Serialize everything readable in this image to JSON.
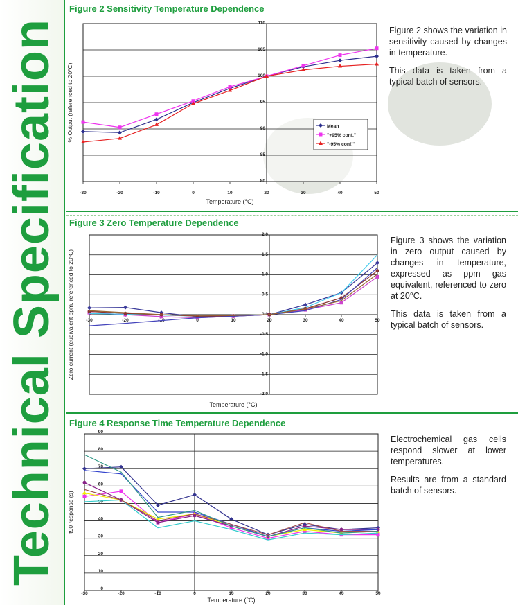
{
  "sidebar": {
    "title": "Technical Specification"
  },
  "sections": [
    {
      "title": "Figure 2 Sensitivity Temperature Dependence",
      "desc": [
        "Figure 2 shows the variation in sensitivity caused by changes in temperature.",
        "This data is taken from a typical batch of sensors."
      ]
    },
    {
      "title": "Figure 3 Zero Temperature Dependence",
      "desc": [
        "Figure 3 shows the variation in zero output caused by changes in temperature, expressed as ppm gas equivalent, referenced to zero at 20°C.",
        "This data is taken from a typical batch of sensors."
      ]
    },
    {
      "title": "Figure 4  Response Time Temperature Dependence",
      "desc": [
        "Electrochemical gas cells respond slower at lower temperatures.",
        "Results are from a standard batch of sensors."
      ]
    }
  ],
  "colors": {
    "brand": "#1e9e3e"
  },
  "chart_data": [
    {
      "type": "line",
      "title": "Figure 2 Sensitivity Temperature Dependence",
      "xlabel": "Temperature (°C)",
      "ylabel": "% Output (referenced to 20°C)",
      "x": [
        -30,
        -20,
        -10,
        0,
        10,
        20,
        30,
        40,
        50
      ],
      "xticks": [
        "-30",
        "-20",
        "-10",
        "0",
        "10",
        "20",
        "30",
        "40",
        "50"
      ],
      "xlim": [
        -30,
        50
      ],
      "ylim": [
        80,
        110
      ],
      "yticks": [
        80,
        85,
        90,
        95,
        100,
        105,
        110
      ],
      "y_axis_at_x": 20,
      "x_axis_at_y": 80,
      "tick_label_loc": "axis",
      "legend": "right-middle",
      "series": [
        {
          "name": "Mean",
          "color": "#2b2e8c",
          "marker": "diamond",
          "values": [
            89.5,
            89.3,
            91.8,
            95.0,
            97.7,
            100.0,
            101.8,
            103.0,
            103.8
          ]
        },
        {
          "name": "\"+95% conf.\"",
          "color": "#ee33ee",
          "marker": "square",
          "values": [
            91.3,
            90.3,
            92.8,
            95.3,
            98.0,
            100.0,
            102.0,
            104.0,
            105.3
          ]
        },
        {
          "name": "\"-95% conf.\"",
          "color": "#e62222",
          "marker": "triangle",
          "values": [
            87.5,
            88.2,
            90.8,
            94.8,
            97.3,
            100.0,
            101.2,
            101.9,
            102.3
          ]
        }
      ]
    },
    {
      "type": "line",
      "title": "Figure 3 Zero Temperature Dependence",
      "xlabel": "Temperature (°C)",
      "ylabel": "Zero current (euqivalent ppm, referenced to 20°C)",
      "x": [
        -30,
        -20,
        -10,
        0,
        10,
        20,
        30,
        40,
        50
      ],
      "xticks": [
        "-30",
        "-20",
        "-10",
        "0",
        "10",
        "20",
        "30",
        "40",
        "50"
      ],
      "xlim": [
        -30,
        50
      ],
      "ylim": [
        -2,
        2
      ],
      "yticks": [
        "-2.0",
        "-1.5",
        "-1.0",
        "-0.5",
        "0.0",
        "0.5",
        "1.0",
        "1.5",
        "2.0"
      ],
      "y_axis_at_x": 20,
      "x_axis_at_y": 0,
      "tick_label_loc": "axis",
      "legend": "none",
      "series": [
        {
          "name": "s1",
          "color": "#3a3a9a",
          "marker": "diamond",
          "values": [
            0.17,
            0.18,
            0.05,
            -0.05,
            -0.04,
            0.0,
            0.25,
            0.55,
            1.3
          ]
        },
        {
          "name": "s2",
          "color": "#cc44cc",
          "marker": "square",
          "values": [
            0.05,
            0.0,
            -0.05,
            -0.08,
            -0.04,
            0.0,
            0.12,
            0.3,
            0.95
          ]
        },
        {
          "name": "s3",
          "color": "#44ccee",
          "marker": "none",
          "values": [
            0.03,
            0.01,
            -0.01,
            -0.04,
            -0.02,
            0.0,
            0.18,
            0.55,
            1.5
          ]
        },
        {
          "name": "s4",
          "color": "#883333",
          "marker": "circle",
          "values": [
            0.08,
            0.03,
            0.0,
            -0.04,
            -0.03,
            0.0,
            0.15,
            0.42,
            1.1
          ]
        },
        {
          "name": "s5",
          "color": "#4444bb",
          "marker": "none",
          "values": [
            -0.28,
            -0.22,
            -0.15,
            -0.08,
            -0.04,
            0.0,
            0.1,
            0.38,
            1.18
          ]
        },
        {
          "name": "s6",
          "color": "#996633",
          "marker": "none",
          "values": [
            0.1,
            0.05,
            0.0,
            -0.02,
            -0.02,
            0.0,
            0.14,
            0.35,
            1.02
          ]
        }
      ]
    },
    {
      "type": "line",
      "title": "Figure 4  Response Time Temperature Dependence",
      "xlabel": "Temperature (°C)",
      "ylabel": "t90 response (s)",
      "x": [
        -30,
        -20,
        -10,
        0,
        10,
        20,
        30,
        40,
        50
      ],
      "xticks": [
        "-30",
        "-20",
        "-10",
        "0",
        "10",
        "20",
        "30",
        "40",
        "50"
      ],
      "xlim": [
        -30,
        50
      ],
      "ylim": [
        0,
        90
      ],
      "yticks": [
        0,
        10,
        20,
        30,
        40,
        50,
        60,
        70,
        80,
        90
      ],
      "y_axis_at_x": 0,
      "x_axis_at_y": 0,
      "tick_label_loc": "left",
      "legend": "none",
      "series": [
        {
          "name": "s1",
          "color": "#33338f",
          "marker": "diamond",
          "values": [
            70,
            71,
            49,
            55,
            41,
            32,
            38,
            35,
            36
          ]
        },
        {
          "name": "s2",
          "color": "#ee33ee",
          "marker": "square",
          "values": [
            54,
            57,
            39,
            44,
            36,
            30,
            34,
            32,
            32
          ]
        },
        {
          "name": "s3",
          "color": "#eeee00",
          "marker": "triangle",
          "values": [
            56,
            52,
            41,
            44,
            37,
            31,
            35,
            33,
            34
          ]
        },
        {
          "name": "s4",
          "color": "#33cccc",
          "marker": "none",
          "values": [
            51,
            52,
            36,
            40,
            35,
            29,
            33,
            32,
            33
          ]
        },
        {
          "name": "s5",
          "color": "#882288",
          "marker": "circle",
          "values": [
            62,
            52,
            39,
            43,
            37,
            31,
            37,
            35,
            35
          ]
        },
        {
          "name": "s6",
          "color": "#3344cc",
          "marker": "none",
          "values": [
            69,
            67,
            45,
            45,
            38,
            31,
            36,
            34,
            35
          ]
        },
        {
          "name": "s7",
          "color": "#a05050",
          "marker": "none",
          "values": [
            58,
            52,
            40,
            44,
            38,
            32,
            39,
            34,
            34
          ]
        },
        {
          "name": "s8",
          "color": "#339988",
          "marker": "none",
          "values": [
            78,
            68,
            42,
            46,
            37,
            31,
            36,
            33,
            34
          ]
        }
      ]
    }
  ]
}
